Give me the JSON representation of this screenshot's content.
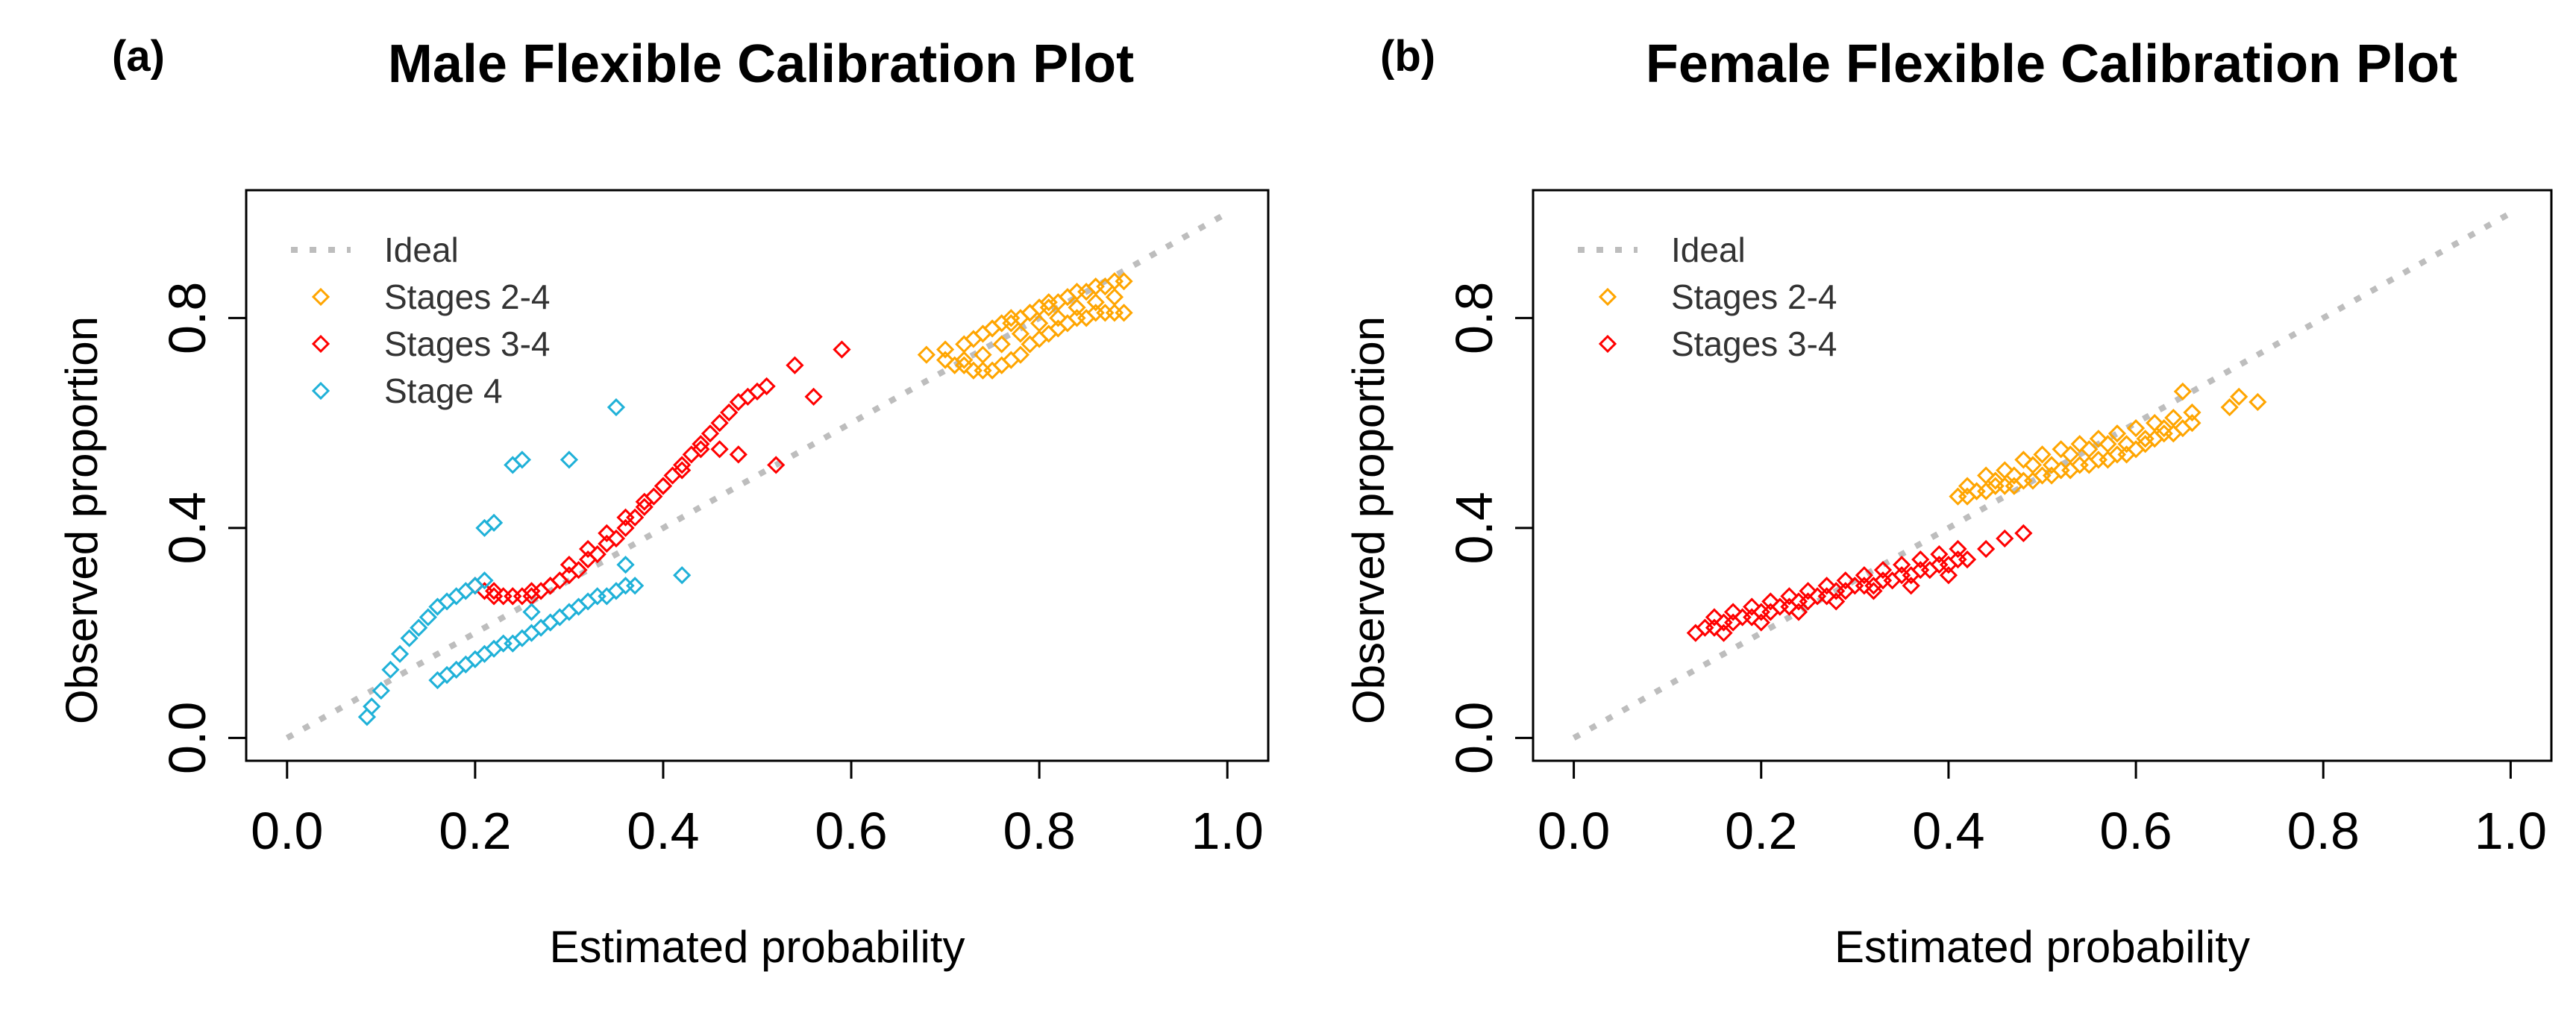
{
  "chart_data": [
    {
      "type": "scatter",
      "panel_label": "(a)",
      "title": "Male Flexible Calibration Plot",
      "xlabel": "Estimated probability",
      "ylabel": "Observed proportion",
      "xlim": [
        0,
        1
      ],
      "ylim": [
        0,
        1
      ],
      "x_ticks": [
        "0.0",
        "0.2",
        "0.4",
        "0.6",
        "0.8",
        "1.0"
      ],
      "y_ticks": [
        "0.0",
        "0.4",
        "0.8"
      ],
      "legend_position": "top-left",
      "ideal_line": {
        "name": "Ideal",
        "color": "#bdbdbd",
        "x": [
          0,
          1
        ],
        "y": [
          0,
          1
        ]
      },
      "series": [
        {
          "name": "Stages 2-4",
          "color": "#ffa500",
          "x": [
            0.68,
            0.7,
            0.71,
            0.72,
            0.73,
            0.74,
            0.75,
            0.76,
            0.77,
            0.78,
            0.79,
            0.8,
            0.81,
            0.82,
            0.83,
            0.84,
            0.85,
            0.86,
            0.87,
            0.88,
            0.89,
            0.7,
            0.72,
            0.74,
            0.75,
            0.76,
            0.77,
            0.78,
            0.79,
            0.8,
            0.81,
            0.82,
            0.83,
            0.84,
            0.85,
            0.86,
            0.87,
            0.88,
            0.89,
            0.72,
            0.74,
            0.76,
            0.78,
            0.8,
            0.82,
            0.84,
            0.86,
            0.88,
            0.73,
            0.75,
            0.77,
            0.79,
            0.81
          ],
          "y": [
            0.73,
            0.72,
            0.71,
            0.71,
            0.7,
            0.7,
            0.7,
            0.71,
            0.72,
            0.73,
            0.75,
            0.76,
            0.77,
            0.78,
            0.79,
            0.8,
            0.8,
            0.81,
            0.81,
            0.81,
            0.81,
            0.74,
            0.75,
            0.77,
            0.78,
            0.79,
            0.8,
            0.8,
            0.81,
            0.82,
            0.83,
            0.83,
            0.84,
            0.85,
            0.85,
            0.86,
            0.86,
            0.87,
            0.87,
            0.72,
            0.73,
            0.75,
            0.77,
            0.79,
            0.8,
            0.82,
            0.83,
            0.84,
            0.76,
            0.78,
            0.79,
            0.81,
            0.82
          ]
        },
        {
          "name": "Stages 3-4",
          "color": "#ff0000",
          "x": [
            0.2,
            0.21,
            0.22,
            0.23,
            0.24,
            0.25,
            0.26,
            0.27,
            0.28,
            0.29,
            0.3,
            0.31,
            0.32,
            0.33,
            0.34,
            0.35,
            0.36,
            0.37,
            0.38,
            0.39,
            0.4,
            0.41,
            0.42,
            0.43,
            0.44,
            0.45,
            0.46,
            0.47,
            0.48,
            0.49,
            0.5,
            0.51,
            0.52,
            0.54,
            0.56,
            0.59,
            0.22,
            0.24,
            0.26,
            0.28,
            0.3,
            0.32,
            0.34,
            0.36,
            0.38,
            0.4,
            0.42,
            0.44,
            0.46,
            0.48
          ],
          "y": [
            0.29,
            0.28,
            0.27,
            0.27,
            0.27,
            0.27,
            0.27,
            0.28,
            0.29,
            0.3,
            0.31,
            0.32,
            0.34,
            0.35,
            0.37,
            0.38,
            0.4,
            0.42,
            0.44,
            0.46,
            0.48,
            0.5,
            0.52,
            0.54,
            0.56,
            0.58,
            0.6,
            0.62,
            0.64,
            0.65,
            0.66,
            0.67,
            0.52,
            0.71,
            0.65,
            0.74,
            0.28,
            0.27,
            0.28,
            0.29,
            0.33,
            0.36,
            0.39,
            0.42,
            0.45,
            0.48,
            0.51,
            0.55,
            0.55,
            0.54
          ]
        },
        {
          "name": "Stage 4",
          "color": "#1fb1d8",
          "x": [
            0.085,
            0.09,
            0.1,
            0.11,
            0.12,
            0.13,
            0.14,
            0.15,
            0.16,
            0.17,
            0.18,
            0.19,
            0.2,
            0.21,
            0.16,
            0.17,
            0.18,
            0.19,
            0.2,
            0.21,
            0.22,
            0.23,
            0.24,
            0.25,
            0.26,
            0.27,
            0.28,
            0.29,
            0.3,
            0.31,
            0.32,
            0.33,
            0.34,
            0.35,
            0.36,
            0.37,
            0.21,
            0.22,
            0.24,
            0.25,
            0.3,
            0.35,
            0.42,
            0.36,
            0.26,
            0.28
          ],
          "y": [
            0.04,
            0.06,
            0.09,
            0.13,
            0.16,
            0.19,
            0.21,
            0.23,
            0.25,
            0.26,
            0.27,
            0.28,
            0.29,
            0.3,
            0.11,
            0.12,
            0.13,
            0.14,
            0.15,
            0.16,
            0.17,
            0.18,
            0.18,
            0.19,
            0.2,
            0.21,
            0.22,
            0.23,
            0.24,
            0.25,
            0.26,
            0.27,
            0.27,
            0.28,
            0.29,
            0.29,
            0.4,
            0.41,
            0.52,
            0.53,
            0.53,
            0.63,
            0.31,
            0.33,
            0.24,
            0.22
          ]
        }
      ]
    },
    {
      "type": "scatter",
      "panel_label": "(b)",
      "title": "Female Flexible Calibration Plot",
      "xlabel": "Estimated probability",
      "ylabel": "Observed proportion",
      "xlim": [
        0,
        1
      ],
      "ylim": [
        0,
        1
      ],
      "x_ticks": [
        "0.0",
        "0.2",
        "0.4",
        "0.6",
        "0.8",
        "1.0"
      ],
      "y_ticks": [
        "0.0",
        "0.4",
        "0.8"
      ],
      "legend_position": "top-left",
      "ideal_line": {
        "name": "Ideal",
        "color": "#bdbdbd",
        "x": [
          0,
          1
        ],
        "y": [
          0,
          1
        ]
      },
      "series": [
        {
          "name": "Stages 2-4",
          "color": "#ffa500",
          "x": [
            0.41,
            0.42,
            0.43,
            0.44,
            0.45,
            0.46,
            0.47,
            0.48,
            0.49,
            0.5,
            0.51,
            0.52,
            0.53,
            0.54,
            0.55,
            0.56,
            0.57,
            0.58,
            0.59,
            0.6,
            0.61,
            0.62,
            0.63,
            0.64,
            0.65,
            0.66,
            0.42,
            0.44,
            0.46,
            0.48,
            0.5,
            0.52,
            0.54,
            0.56,
            0.58,
            0.6,
            0.62,
            0.64,
            0.66,
            0.43,
            0.45,
            0.47,
            0.49,
            0.51,
            0.53,
            0.55,
            0.57,
            0.59,
            0.61,
            0.63,
            0.65,
            0.7,
            0.71,
            0.73
          ],
          "y": [
            0.46,
            0.46,
            0.47,
            0.47,
            0.48,
            0.48,
            0.48,
            0.49,
            0.49,
            0.5,
            0.5,
            0.51,
            0.51,
            0.52,
            0.52,
            0.53,
            0.53,
            0.54,
            0.54,
            0.55,
            0.56,
            0.57,
            0.58,
            0.58,
            0.59,
            0.6,
            0.48,
            0.5,
            0.51,
            0.53,
            0.54,
            0.55,
            0.56,
            0.57,
            0.58,
            0.59,
            0.6,
            0.61,
            0.62,
            0.47,
            0.49,
            0.5,
            0.52,
            0.52,
            0.54,
            0.55,
            0.56,
            0.56,
            0.57,
            0.59,
            0.66,
            0.63,
            0.65,
            0.64
          ]
        },
        {
          "name": "Stages 3-4",
          "color": "#ff0000",
          "x": [
            0.13,
            0.14,
            0.15,
            0.16,
            0.17,
            0.18,
            0.19,
            0.2,
            0.21,
            0.22,
            0.23,
            0.24,
            0.25,
            0.26,
            0.27,
            0.28,
            0.29,
            0.3,
            0.31,
            0.32,
            0.33,
            0.34,
            0.35,
            0.36,
            0.37,
            0.38,
            0.39,
            0.4,
            0.41,
            0.42,
            0.44,
            0.46,
            0.48,
            0.15,
            0.17,
            0.19,
            0.21,
            0.23,
            0.25,
            0.27,
            0.29,
            0.31,
            0.33,
            0.35,
            0.37,
            0.39,
            0.41,
            0.16,
            0.2,
            0.24,
            0.28,
            0.32,
            0.36,
            0.4
          ],
          "y": [
            0.2,
            0.21,
            0.21,
            0.22,
            0.22,
            0.23,
            0.23,
            0.24,
            0.24,
            0.25,
            0.25,
            0.26,
            0.26,
            0.27,
            0.27,
            0.28,
            0.28,
            0.29,
            0.29,
            0.29,
            0.3,
            0.3,
            0.31,
            0.31,
            0.32,
            0.32,
            0.33,
            0.33,
            0.34,
            0.34,
            0.36,
            0.38,
            0.39,
            0.23,
            0.24,
            0.25,
            0.26,
            0.27,
            0.28,
            0.29,
            0.3,
            0.31,
            0.32,
            0.33,
            0.34,
            0.35,
            0.36,
            0.2,
            0.22,
            0.24,
            0.26,
            0.28,
            0.29,
            0.31
          ]
        }
      ]
    }
  ]
}
